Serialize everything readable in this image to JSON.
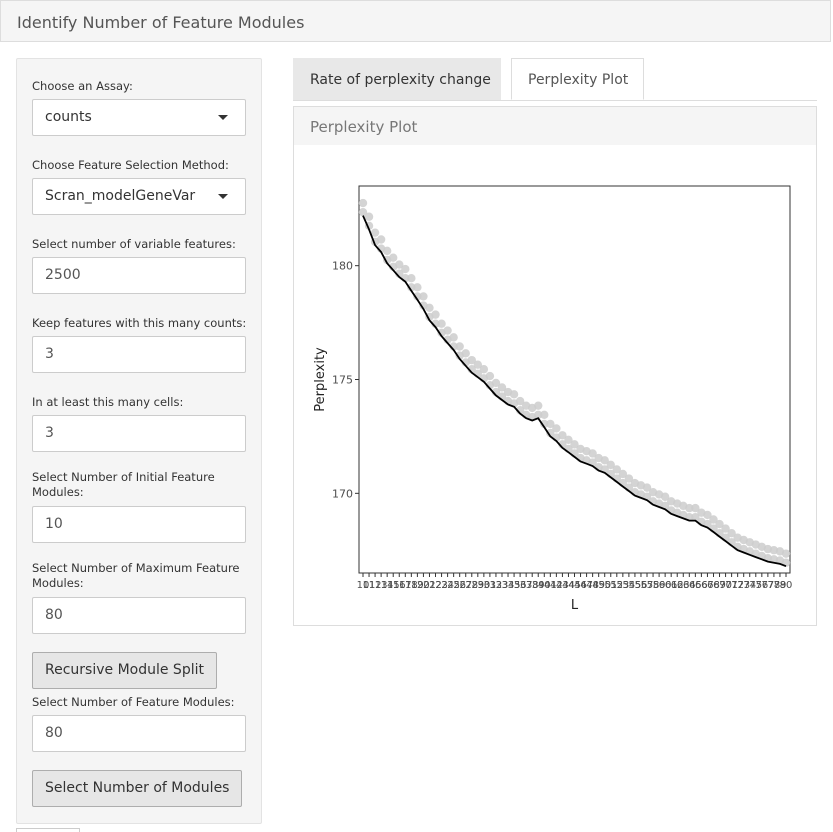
{
  "panel": {
    "title": "Identify Number of Feature Modules"
  },
  "sidebar": {
    "assay_label": "Choose an Assay:",
    "assay_value": "counts",
    "method_label": "Choose Feature Selection Method:",
    "method_value": "Scran_modelGeneVar",
    "nvar_label": "Select number of variable features:",
    "nvar_value": "2500",
    "keep_label": "Keep features with this many counts:",
    "keep_value": "3",
    "cells_label": "In at least this many cells:",
    "cells_value": "3",
    "initial_label": "Select Number of Initial Feature Modules:",
    "initial_value": "10",
    "max_label": "Select Number of Maximum Feature Modules:",
    "max_value": "80",
    "recursive_button": "Recursive Module Split",
    "nmod_label": "Select Number of Feature Modules:",
    "nmod_value": "80",
    "select_button": "Select Number of Modules"
  },
  "tabs": [
    {
      "label": "Rate of perplexity change",
      "active": false
    },
    {
      "label": "Perplexity Plot",
      "active": true
    }
  ],
  "plot_panel": {
    "title": "Perplexity Plot"
  },
  "chart_data": {
    "type": "line",
    "xlabel": "L",
    "ylabel": "Perplexity",
    "x": [
      10,
      11,
      12,
      13,
      14,
      15,
      16,
      17,
      18,
      19,
      20,
      21,
      22,
      23,
      24,
      25,
      26,
      27,
      28,
      29,
      30,
      31,
      32,
      33,
      34,
      35,
      36,
      37,
      38,
      39,
      40,
      41,
      42,
      43,
      44,
      45,
      46,
      47,
      48,
      49,
      50,
      51,
      52,
      53,
      54,
      55,
      56,
      57,
      58,
      59,
      60,
      61,
      62,
      63,
      64,
      65,
      66,
      67,
      68,
      69,
      70,
      71,
      72,
      73,
      74,
      75,
      76,
      77,
      78,
      79,
      80
    ],
    "values": [
      182.2,
      181.6,
      180.9,
      180.6,
      180.1,
      179.8,
      179.5,
      179.3,
      178.9,
      178.5,
      178.1,
      177.6,
      177.3,
      176.9,
      176.6,
      176.3,
      175.9,
      175.6,
      175.3,
      175.1,
      174.9,
      174.6,
      174.3,
      174.1,
      173.9,
      173.8,
      173.5,
      173.3,
      173.2,
      173.3,
      172.9,
      172.5,
      172.3,
      172.0,
      171.8,
      171.6,
      171.4,
      171.3,
      171.2,
      171.0,
      170.9,
      170.7,
      170.5,
      170.3,
      170.1,
      169.9,
      169.8,
      169.7,
      169.5,
      169.4,
      169.3,
      169.1,
      169.0,
      168.9,
      168.8,
      168.8,
      168.6,
      168.5,
      168.3,
      168.1,
      167.9,
      167.7,
      167.5,
      167.4,
      167.3,
      167.2,
      167.1,
      167.0,
      166.95,
      166.9,
      166.8
    ],
    "points_color": "#cccccc",
    "line_color": "#000000",
    "xlim": [
      10,
      80
    ],
    "ylim": [
      166.5,
      183.5
    ],
    "yticks": [
      170,
      175,
      180
    ],
    "grid": false
  }
}
